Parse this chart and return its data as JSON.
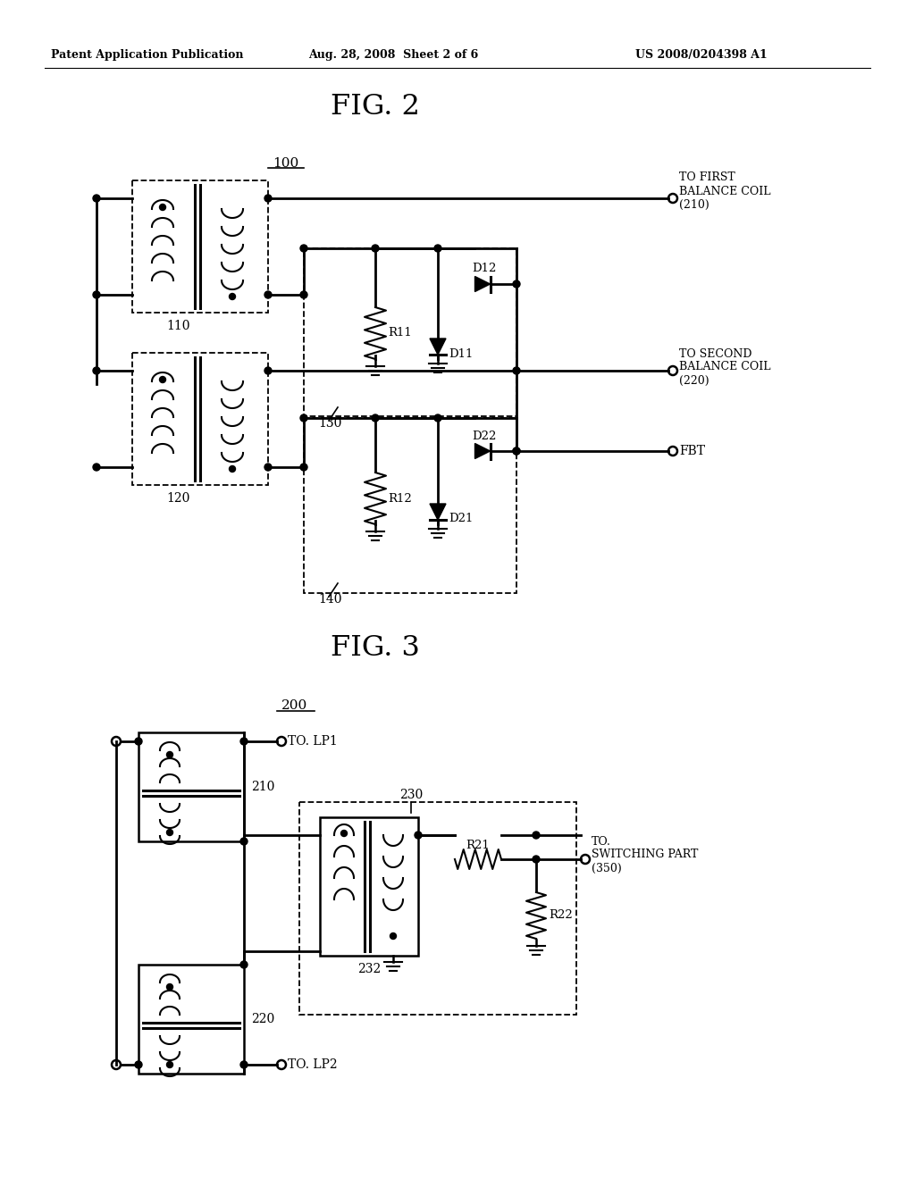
{
  "bg_color": "#ffffff",
  "header1": "Patent Application Publication",
  "header2": "Aug. 28, 2008  Sheet 2 of 6",
  "header3": "US 2008/0204398 A1",
  "fig2_title": "FIG. 2",
  "fig3_title": "FIG. 3",
  "lbl_100": "100",
  "lbl_200": "200",
  "lbl_110": "110",
  "lbl_120": "120",
  "lbl_130": "130",
  "lbl_140": "140",
  "lbl_210": "210",
  "lbl_220": "220",
  "lbl_230": "230",
  "lbl_232": "232",
  "lbl_R11": "R11",
  "lbl_R12": "R12",
  "lbl_D11": "D11",
  "lbl_D12": "D12",
  "lbl_D21": "D21",
  "lbl_D22": "D22",
  "lbl_R21": "R21",
  "lbl_R22": "R22",
  "txt_first": "TO FIRST\nBALANCE COIL\n(210)",
  "txt_second": "TO SECOND\nBALANCE COIL\n(220)",
  "txt_fbt": "FBT",
  "txt_lp1": "TO. LP1",
  "txt_lp2": "TO. LP2",
  "txt_sw": "TO.\nSWITCHING PART\n(350)"
}
